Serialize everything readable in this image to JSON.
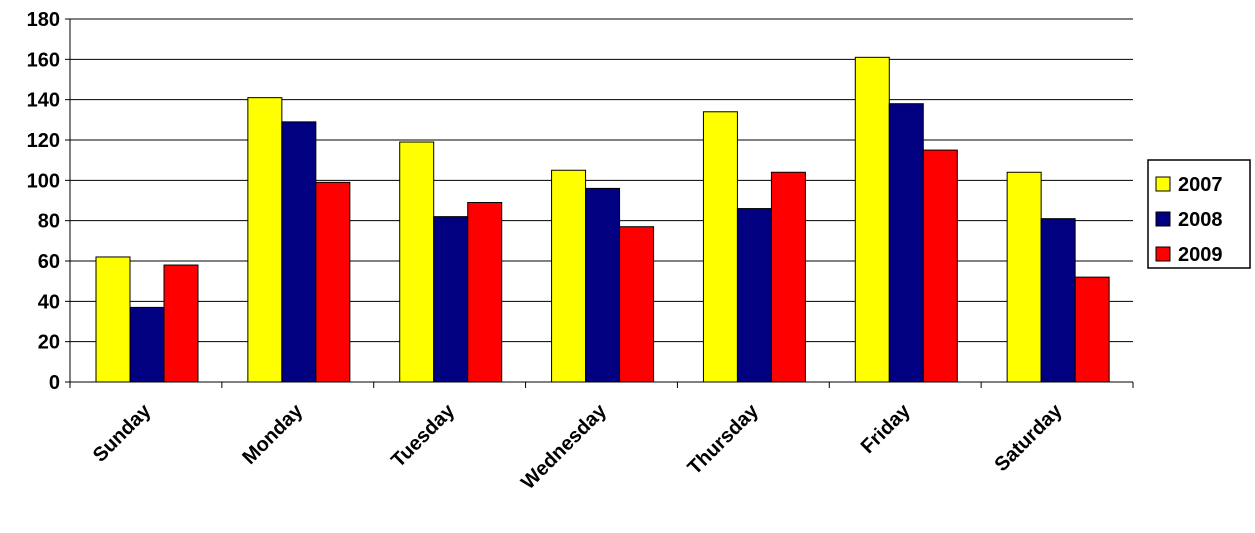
{
  "colors": {
    "2007": "#ffff00",
    "2008": "#000080",
    "2009": "#ff0000",
    "gridline": "#000000",
    "bar_outline": "#000000"
  },
  "chart_data": {
    "type": "bar",
    "title": "",
    "xlabel": "",
    "ylabel": "",
    "ylim": [
      0,
      180
    ],
    "yticks": [
      0,
      20,
      40,
      60,
      80,
      100,
      120,
      140,
      160,
      180
    ],
    "grid": true,
    "legend_position": "right",
    "categories": [
      "Sunday",
      "Monday",
      "Tuesday",
      "Wednesday",
      "Thursday",
      "Friday",
      "Saturday"
    ],
    "series": [
      {
        "name": "2007",
        "color": "#ffff00",
        "values": [
          62,
          141,
          119,
          105,
          134,
          161,
          104
        ]
      },
      {
        "name": "2008",
        "color": "#000080",
        "values": [
          37,
          129,
          82,
          96,
          86,
          138,
          81
        ]
      },
      {
        "name": "2009",
        "color": "#ff0000",
        "values": [
          58,
          99,
          89,
          77,
          104,
          115,
          52
        ]
      }
    ]
  }
}
